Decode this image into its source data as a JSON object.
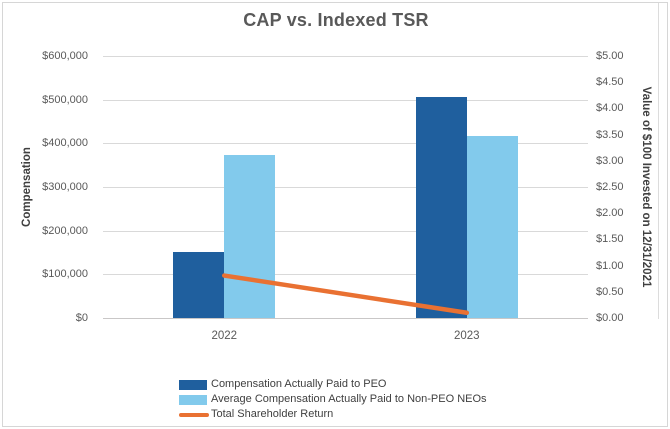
{
  "chart_data": {
    "type": "combo-bar-line",
    "title": "CAP vs. Indexed TSR",
    "categories": [
      "2022",
      "2023"
    ],
    "series": [
      {
        "name": "Compensation Actually Paid to PEO",
        "type": "bar",
        "axis": "left",
        "color": "#1F5F9E",
        "values": [
          151000,
          506000
        ]
      },
      {
        "name": "Average Compensation Actually Paid to Non-PEO NEOs",
        "type": "bar",
        "axis": "left",
        "color": "#82CAEC",
        "values": [
          373000,
          417000
        ]
      },
      {
        "name": "Total Shareholder Return",
        "type": "line",
        "axis": "right",
        "color": "#E97132",
        "values": [
          0.81,
          0.1
        ]
      }
    ],
    "left_axis": {
      "title": "Compensation",
      "min": 0,
      "max": 600000,
      "step": 100000,
      "ticks": [
        "$0",
        "$100,000",
        "$200,000",
        "$300,000",
        "$400,000",
        "$500,000",
        "$600,000"
      ]
    },
    "right_axis": {
      "title": "Value of $100 Invested on 12/31/2021",
      "min": 0,
      "max": 5,
      "step": 0.5,
      "ticks": [
        "$0.00",
        "$0.50",
        "$1.00",
        "$1.50",
        "$2.00",
        "$2.50",
        "$3.00",
        "$3.50",
        "$4.00",
        "$4.50",
        "$5.00"
      ]
    },
    "grid": true,
    "legend_position": "bottom",
    "colors": {
      "gridline": "#D9D9D9",
      "text": "#595959",
      "title": "#595959"
    }
  }
}
